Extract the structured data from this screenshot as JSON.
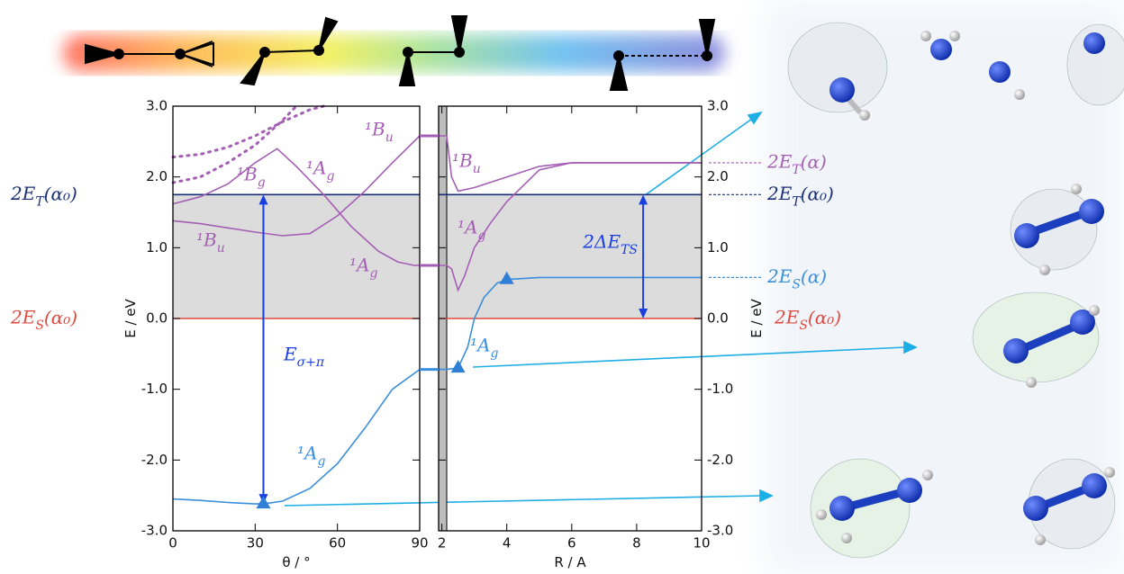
{
  "chart_data": [
    {
      "type": "line",
      "xlabel": "θ / °",
      "ylabel": "E / eV",
      "xlim": [
        0,
        90
      ],
      "ylim": [
        -3,
        3
      ],
      "xticks": [
        0,
        30,
        60,
        90
      ],
      "yticks": [
        {
          "value": -3,
          "label": "-3.0"
        },
        {
          "value": -2,
          "label": "-2.0"
        },
        {
          "value": -1,
          "label": "-1.0"
        },
        {
          "value": 0,
          "label": "0.0"
        },
        {
          "value": 1,
          "label": "1.0"
        },
        {
          "value": 2,
          "label": "2.0"
        },
        {
          "value": 3,
          "label": "3.0"
        }
      ],
      "series": [
        {
          "color": "#a45fb4",
          "style": "solid",
          "x": [
            0,
            10,
            20,
            30,
            38,
            45,
            55,
            65,
            75,
            82,
            88,
            90
          ],
          "values": [
            1.62,
            1.72,
            1.9,
            2.2,
            2.4,
            2.15,
            1.75,
            1.3,
            0.95,
            0.8,
            0.75,
            0.75
          ]
        },
        {
          "color": "#a45fb4",
          "style": "solid",
          "x": [
            0,
            10,
            20,
            30,
            40,
            50,
            60,
            70,
            80,
            90
          ],
          "values": [
            1.38,
            1.34,
            1.28,
            1.22,
            1.17,
            1.2,
            1.45,
            1.8,
            2.2,
            2.58
          ]
        },
        {
          "color": "#a45fb4",
          "style": "dotted",
          "x": [
            0,
            10,
            20,
            30,
            40,
            50,
            55
          ],
          "values": [
            2.28,
            2.32,
            2.42,
            2.58,
            2.78,
            2.95,
            3.0
          ]
        },
        {
          "color": "#a45fb4",
          "style": "dotted",
          "x": [
            0,
            10,
            20,
            30,
            40,
            45
          ],
          "values": [
            1.92,
            2.0,
            2.2,
            2.45,
            2.8,
            3.0
          ]
        },
        {
          "color": "#3a8fdc",
          "style": "solid",
          "x": [
            0,
            10,
            20,
            30,
            33,
            40,
            50,
            60,
            70,
            80,
            90
          ],
          "values": [
            -2.55,
            -2.57,
            -2.6,
            -2.62,
            -2.62,
            -2.58,
            -2.4,
            -2.05,
            -1.55,
            -1.0,
            -0.72
          ]
        }
      ],
      "curve_labels": [
        {
          "text": "¹B_u",
          "color": "#a45fb4"
        },
        {
          "text": "¹B_g",
          "color": "#a45fb4"
        },
        {
          "text": "¹A_g",
          "color": "#a45fb4"
        },
        {
          "text": "¹B_u",
          "color": "#a45fb4"
        },
        {
          "text": "¹A_g",
          "color": "#a45fb4"
        },
        {
          "text": "¹A_g",
          "color": "#3a8fdc"
        }
      ],
      "hlines": [
        {
          "value": 1.75,
          "color": "#1b2f78",
          "label": "2E_T(α₀)"
        },
        {
          "value": 0,
          "color": "#e04a40",
          "label": "2E_S(α₀)"
        }
      ],
      "shade_between_hlines": true,
      "markers": {
        "color": "#2f7fd6",
        "x": [
          33
        ],
        "values": [
          -2.62
        ]
      },
      "arrow": {
        "text": "E_σ+π",
        "color": "#1a3fe0",
        "x": 33,
        "from": 1.75,
        "to": -2.62
      }
    },
    {
      "type": "line",
      "xlabel": "R / A",
      "ylabel": "E / eV",
      "xlim": [
        1.9,
        10
      ],
      "ylim": [
        -3,
        3
      ],
      "xticks": [
        2,
        4,
        6,
        8,
        10
      ],
      "yticks": [
        {
          "value": -3,
          "label": "-3.0"
        },
        {
          "value": -2,
          "label": "-2.0"
        },
        {
          "value": -1,
          "label": "-1.0"
        },
        {
          "value": 0,
          "label": "0.0"
        },
        {
          "value": 1,
          "label": "1.0"
        },
        {
          "value": 2,
          "label": "2.0"
        },
        {
          "value": 3,
          "label": "3.0"
        }
      ],
      "series": [
        {
          "color": "#a45fb4",
          "style": "solid",
          "x": [
            1.9,
            2.15,
            2.3,
            2.5,
            3,
            4,
            5,
            6,
            10
          ],
          "values": [
            2.58,
            2.58,
            2.0,
            1.8,
            1.85,
            2.0,
            2.15,
            2.2,
            2.2
          ]
        },
        {
          "color": "#a45fb4",
          "style": "solid",
          "x": [
            1.9,
            2.15,
            2.3,
            2.5,
            2.7,
            3,
            3.5,
            4,
            5,
            6,
            10
          ],
          "values": [
            0.75,
            0.75,
            0.7,
            0.4,
            0.6,
            1.0,
            1.35,
            1.65,
            2.1,
            2.2,
            2.2
          ]
        },
        {
          "color": "#3a8fdc",
          "style": "solid",
          "x": [
            1.9,
            2.15,
            2.5,
            2.8,
            3,
            3.3,
            3.7,
            4,
            5,
            10
          ],
          "values": [
            -0.72,
            -0.72,
            -0.7,
            -0.4,
            0,
            0.3,
            0.5,
            0.55,
            0.58,
            0.58
          ]
        }
      ],
      "curve_labels": [
        {
          "text": "¹B_u",
          "color": "#a45fb4"
        },
        {
          "text": "¹A_g",
          "color": "#a45fb4"
        },
        {
          "text": "¹A_g",
          "color": "#3a8fdc"
        }
      ],
      "hlines": [
        {
          "value": 2.2,
          "color": "#a45fb4",
          "label": "2E_T(α)",
          "line": false
        },
        {
          "value": 1.75,
          "color": "#1b2f78",
          "label": "2E_T(α₀)"
        },
        {
          "value": 0.58,
          "color": "#3a8fdc",
          "label": "2E_S(α)",
          "line": false
        },
        {
          "value": 0,
          "color": "#e04a40",
          "label": "2E_S(α₀)"
        }
      ],
      "shade_between_hlines": true,
      "markers": {
        "color": "#2f7fd6",
        "x": [
          2.5,
          4
        ],
        "values": [
          -0.7,
          0.55
        ]
      },
      "arrow": {
        "text": "2ΔE_TS",
        "color": "#1a3fe0",
        "x": 8.2,
        "from": 1.75,
        "to": 0
      }
    }
  ]
}
